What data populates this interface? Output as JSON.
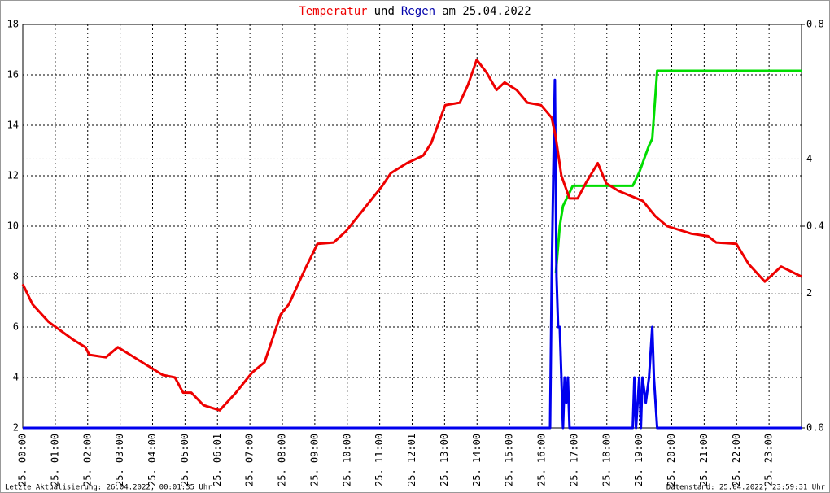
{
  "chart_data": {
    "type": "line",
    "title": [
      "Temperatur",
      "und",
      "Regen",
      "am 25.04.2022"
    ],
    "footer_left": "Letzte Aktualisierung: 26.04.2022, 00:01:35 Uhr",
    "footer_right": "Datenstand: 25.04.2022, 23:59:31 Uhr",
    "grid": true,
    "xlim": [
      0,
      24
    ],
    "xticks": [
      {
        "value": 0,
        "label": "25. 00:00"
      },
      {
        "value": 1,
        "label": "25. 01:00"
      },
      {
        "value": 2,
        "label": "25. 02:00"
      },
      {
        "value": 3,
        "label": "25. 03:00"
      },
      {
        "value": 4,
        "label": "25. 04:00"
      },
      {
        "value": 5,
        "label": "25. 05:00"
      },
      {
        "value": 6,
        "label": "25. 06:01"
      },
      {
        "value": 7,
        "label": "25. 07:00"
      },
      {
        "value": 8,
        "label": "25. 08:00"
      },
      {
        "value": 9,
        "label": "25. 09:00"
      },
      {
        "value": 10,
        "label": "25. 10:00"
      },
      {
        "value": 11,
        "label": "25. 11:00"
      },
      {
        "value": 12,
        "label": "25. 12:01"
      },
      {
        "value": 13,
        "label": "25. 13:00"
      },
      {
        "value": 14,
        "label": "25. 14:00"
      },
      {
        "value": 15,
        "label": "25. 15:00"
      },
      {
        "value": 16,
        "label": "25. 16:00"
      },
      {
        "value": 17,
        "label": "25. 17:00"
      },
      {
        "value": 18,
        "label": "25. 18:00"
      },
      {
        "value": 19,
        "label": "25. 19:00"
      },
      {
        "value": 20,
        "label": "25. 20:00"
      },
      {
        "value": 21,
        "label": "25. 21:00"
      },
      {
        "value": 22,
        "label": "25. 22:00"
      },
      {
        "value": 23,
        "label": "25. 23:00"
      }
    ],
    "ylim": [
      2,
      18
    ],
    "yticks": [
      2,
      4,
      6,
      8,
      10,
      12,
      14,
      16,
      18
    ],
    "y2lim": [
      0,
      0.8
    ],
    "y2ticks": [
      {
        "value": 0,
        "label": "0.0"
      },
      0.4,
      0.8
    ],
    "y3lim": [
      0,
      6
    ],
    "y3ticks": [
      2,
      4
    ],
    "y3color": "#00dd00",
    "series": [
      {
        "color": "#ee0000",
        "axis": "y",
        "x": [
          0,
          0.3,
          0.8,
          1.55,
          1.93,
          2.05,
          2.56,
          2.93,
          3.31,
          3.81,
          4.31,
          4.69,
          4.94,
          5.19,
          5.57,
          6.07,
          6.57,
          7.07,
          7.45,
          7.95,
          8.2,
          8.7,
          9.08,
          9.58,
          9.96,
          10.46,
          11.08,
          11.34,
          11.84,
          12.34,
          12.59,
          13.02,
          13.47,
          13.72,
          13.99,
          14.29,
          14.6,
          14.85,
          15.22,
          15.55,
          15.97,
          16.3,
          16.43,
          16.6,
          16.85,
          17.1,
          17.35,
          17.72,
          17.98,
          18.36,
          19.11,
          19.49,
          19.86,
          20.61,
          21.12,
          21.37,
          21.99,
          22.37,
          22.87,
          23.37,
          24
        ],
        "values": [
          7.7,
          6.9,
          6.2,
          5.5,
          5.2,
          4.9,
          4.8,
          5.2,
          4.9,
          4.5,
          4.1,
          4.0,
          3.4,
          3.4,
          2.9,
          2.7,
          3.4,
          4.2,
          4.6,
          6.5,
          6.9,
          8.3,
          9.3,
          9.35,
          9.8,
          10.6,
          11.6,
          12.1,
          12.5,
          12.8,
          13.3,
          14.8,
          14.9,
          15.6,
          16.6,
          16.1,
          15.4,
          15.7,
          15.4,
          14.9,
          14.8,
          14.3,
          13.5,
          12.0,
          11.1,
          11.1,
          11.7,
          12.5,
          11.7,
          11.4,
          11.0,
          10.4,
          10.0,
          9.7,
          9.6,
          9.35,
          9.3,
          8.5,
          7.8,
          8.4,
          8.0
        ]
      },
      {
        "color": "#0000ee",
        "axis": "y2",
        "x": [
          0,
          16.25,
          16.3,
          16.35,
          16.4,
          16.45,
          16.5,
          16.55,
          16.6,
          16.65,
          16.7,
          16.75,
          16.8,
          16.85,
          18.8,
          18.85,
          18.9,
          19.0,
          19.05,
          19.1,
          19.2,
          19.3,
          19.4,
          19.45,
          19.55,
          24
        ],
        "values": [
          0,
          0,
          0.3,
          0.51,
          0.69,
          0.3,
          0.2,
          0.2,
          0.1,
          0,
          0.1,
          0.05,
          0.1,
          0,
          0,
          0.1,
          0,
          0.1,
          0,
          0.1,
          0.05,
          0.1,
          0.2,
          0.1,
          0,
          0
        ]
      },
      {
        "color": "#00dd00",
        "axis": "y3",
        "x": [
          16.43,
          16.55,
          16.65,
          16.8,
          16.95,
          18.8,
          19.0,
          19.3,
          19.4,
          19.55,
          24
        ],
        "values": [
          2.3,
          3.0,
          3.3,
          3.45,
          3.6,
          3.6,
          3.8,
          4.2,
          4.3,
          5.31,
          5.31
        ]
      }
    ]
  }
}
